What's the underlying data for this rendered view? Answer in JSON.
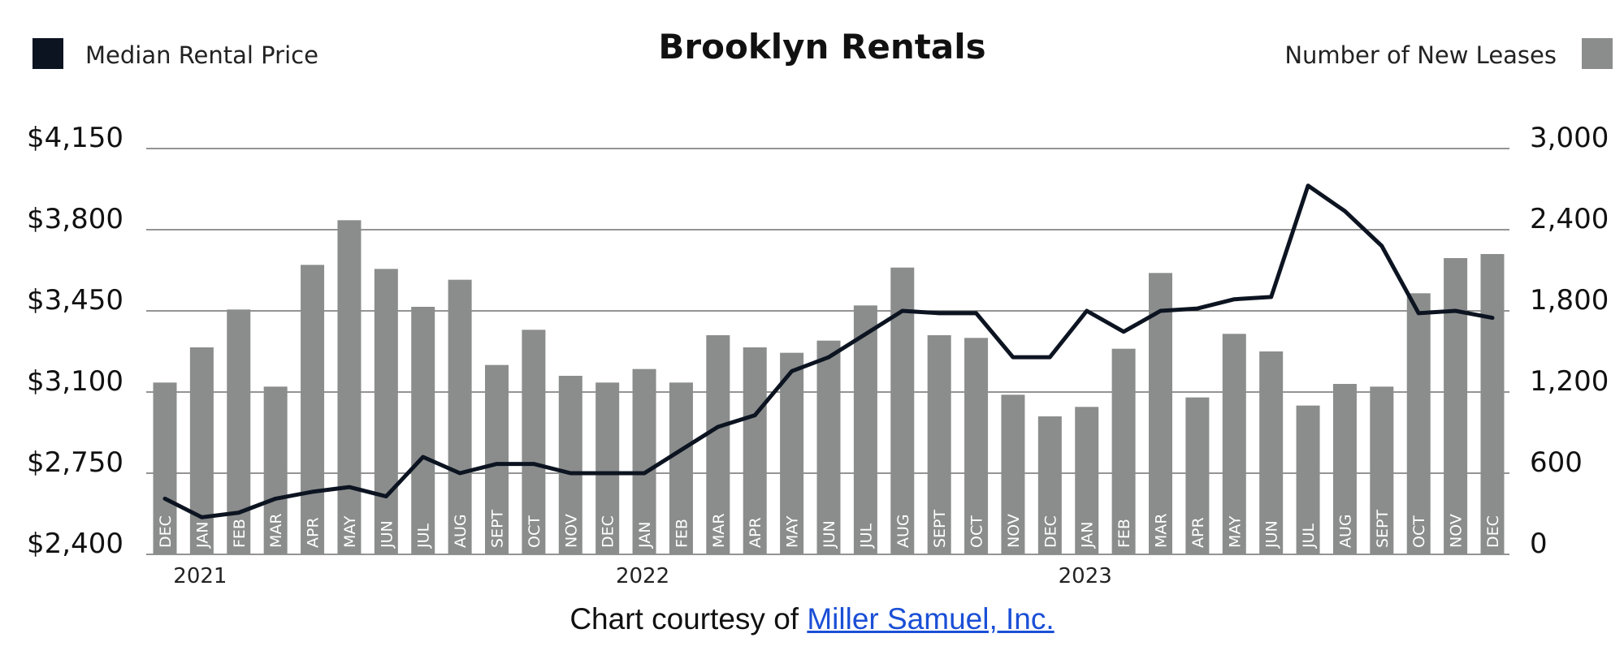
{
  "chart_data": {
    "type": "bar+line",
    "title": "Brooklyn Rentals",
    "legend": {
      "left": {
        "label": "Median Rental Price",
        "color": "#0d1421"
      },
      "right": {
        "label": "Number of New Leases",
        "color": "#8a8d8c"
      }
    },
    "y_left": {
      "min": 2400,
      "max": 4150,
      "ticks": [
        "$4,150",
        "$3,800",
        "$3,450",
        "$3,100",
        "$2,750",
        "$2,400"
      ]
    },
    "y_right": {
      "min": 0,
      "max": 3000,
      "ticks": [
        "3,000",
        "2,400",
        "1,800",
        "1,200",
        "600",
        "0"
      ]
    },
    "categories": [
      "DEC",
      "JAN",
      "FEB",
      "MAR",
      "APR",
      "MAY",
      "JUN",
      "JUL",
      "AUG",
      "SEPT",
      "OCT",
      "NOV",
      "DEC",
      "JAN",
      "FEB",
      "MAR",
      "APR",
      "MAY",
      "JUN",
      "JUL",
      "AUG",
      "SEPT",
      "OCT",
      "NOV",
      "DEC",
      "JAN",
      "FEB",
      "MAR",
      "APR",
      "MAY",
      "JUN",
      "JUL",
      "AUG",
      "SEPT",
      "OCT",
      "NOV",
      "DEC"
    ],
    "years": [
      {
        "label": "2021",
        "index": 1
      },
      {
        "label": "2022",
        "index": 13
      },
      {
        "label": "2023",
        "index": 25
      }
    ],
    "series": [
      {
        "name": "Number of New Leases",
        "type": "bar",
        "axis": "right",
        "color": "#8a8d8c",
        "values": [
          1270,
          1530,
          1810,
          1240,
          2140,
          2470,
          2110,
          1830,
          2030,
          1400,
          1660,
          1320,
          1270,
          1370,
          1270,
          1620,
          1530,
          1490,
          1580,
          1840,
          2120,
          1620,
          1600,
          1180,
          1020,
          1090,
          1520,
          2080,
          1160,
          1630,
          1500,
          1100,
          1260,
          1240,
          1930,
          2190,
          2220
        ]
      },
      {
        "name": "Median Rental Price",
        "type": "line",
        "axis": "left",
        "color": "#0d1421",
        "values": [
          2640,
          2560,
          2580,
          2640,
          2670,
          2690,
          2650,
          2820,
          2750,
          2790,
          2790,
          2750,
          2750,
          2750,
          2850,
          2950,
          3000,
          3190,
          3250,
          3350,
          3450,
          3440,
          3440,
          3250,
          3250,
          3450,
          3360,
          3450,
          3460,
          3500,
          3510,
          3990,
          3880,
          3730,
          3440,
          3450,
          3420
        ]
      }
    ],
    "grid": true
  },
  "footer": {
    "prefix": "Chart courtesy of ",
    "link_text": "Miller Samuel, Inc."
  }
}
